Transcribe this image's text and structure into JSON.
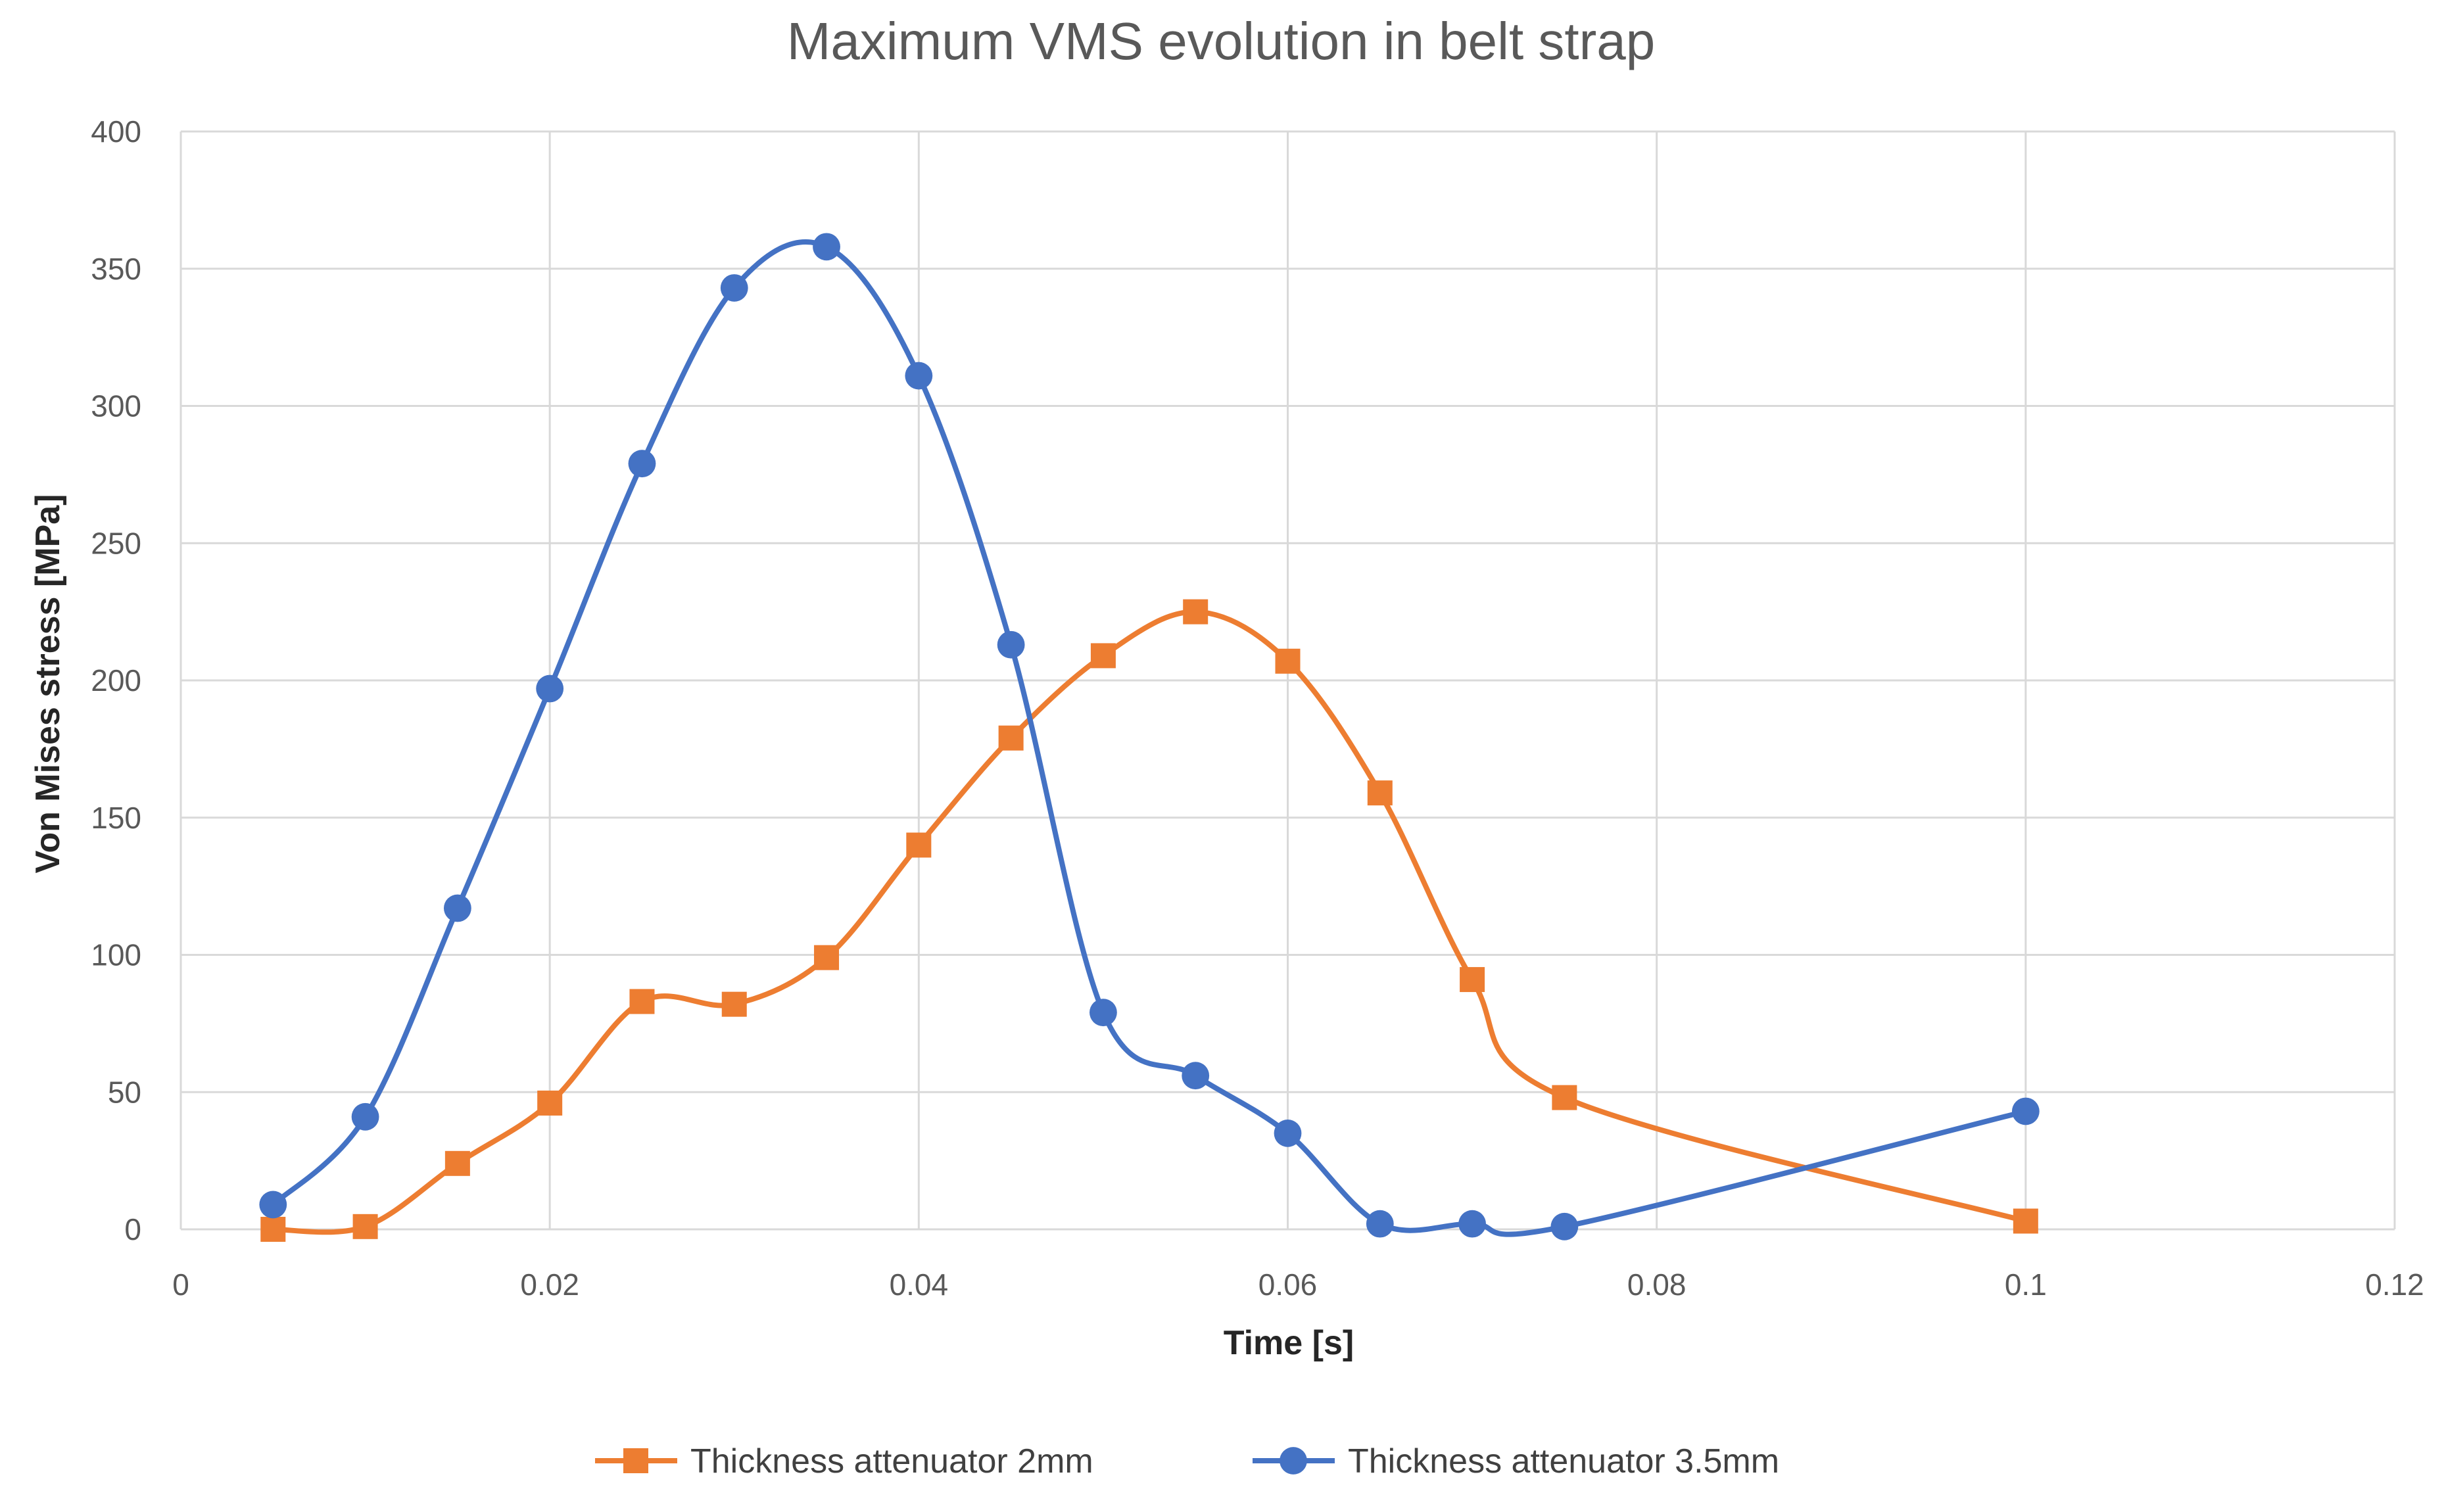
{
  "chart_data": {
    "type": "line",
    "title": "Maximum VMS evolution in belt strap",
    "xlabel": "Time [s]",
    "ylabel": "Von Mises stress [MPa]",
    "xlim": [
      0,
      0.12
    ],
    "ylim": [
      0,
      400
    ],
    "xticks": [
      0,
      0.02,
      0.04,
      0.06,
      0.08,
      0.1,
      0.12
    ],
    "xtick_labels": [
      "0",
      "0.02",
      "0.04",
      "0.06",
      "0.08",
      "0.1",
      "0.12"
    ],
    "yticks": [
      0,
      50,
      100,
      150,
      200,
      250,
      300,
      350,
      400
    ],
    "ytick_labels": [
      "0",
      "50",
      "100",
      "150",
      "200",
      "250",
      "300",
      "350",
      "400"
    ],
    "grid": true,
    "smooth": true,
    "legend_position": "bottom",
    "series": [
      {
        "name": "Thickness attenuator 2mm",
        "color": "#ED7D31",
        "marker": "square",
        "x": [
          0.005,
          0.01,
          0.015,
          0.02,
          0.025,
          0.03,
          0.035,
          0.04,
          0.045,
          0.05,
          0.055,
          0.06,
          0.065,
          0.07,
          0.075,
          0.1
        ],
        "y": [
          0,
          1,
          24,
          46,
          83,
          82,
          99,
          140,
          179,
          209,
          225,
          207,
          159,
          91,
          48,
          3
        ]
      },
      {
        "name": "Thickness attenuator 3.5mm",
        "color": "#4472C4",
        "marker": "circle",
        "x": [
          0.005,
          0.01,
          0.015,
          0.02,
          0.025,
          0.03,
          0.035,
          0.04,
          0.045,
          0.05,
          0.055,
          0.06,
          0.065,
          0.07,
          0.075,
          0.1
        ],
        "y": [
          9,
          41,
          117,
          197,
          279,
          343,
          358,
          311,
          213,
          79,
          56,
          35,
          2,
          2,
          1,
          43
        ]
      }
    ]
  }
}
